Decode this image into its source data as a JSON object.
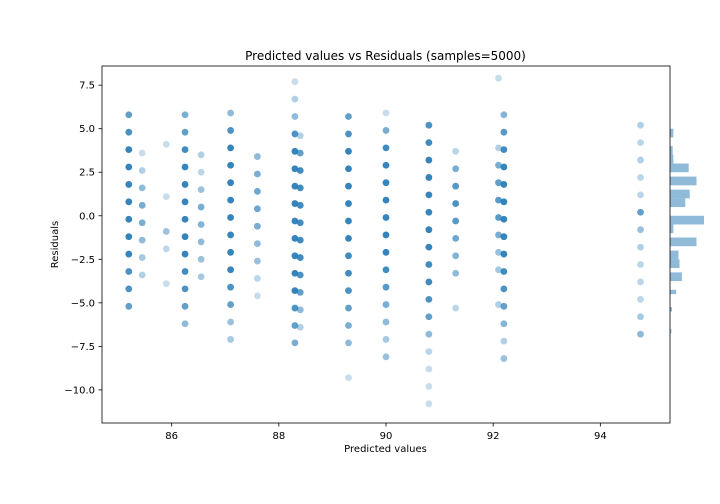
{
  "chart_data": {
    "type": "scatter",
    "title": "Predicted values vs Residuals (samples=5000)",
    "xlabel": "Predicted values",
    "ylabel": "Residuals",
    "xlim": [
      84.7,
      95.3
    ],
    "ylim": [
      -11.9,
      8.6
    ],
    "xticks": [
      86,
      88,
      90,
      92,
      94
    ],
    "yticks": [
      7.5,
      5.0,
      2.5,
      0.0,
      -2.5,
      -5.0,
      -7.5,
      -10.0
    ],
    "ytick_labels": [
      "7.5",
      "5.0",
      "2.5",
      "0.0",
      "−2.5",
      "−5.0",
      "−7.5",
      "−10.0"
    ],
    "color": "#1f77b4",
    "grid": false,
    "columns": [
      {
        "x": 85.2,
        "y": [
          5.8,
          4.8,
          3.8,
          2.8,
          1.8,
          0.8,
          -0.2,
          -1.2,
          -2.2,
          -3.2,
          -4.2,
          -5.2
        ],
        "alpha": [
          0.7,
          0.8,
          0.9,
          0.9,
          0.9,
          0.9,
          0.9,
          0.9,
          0.9,
          0.8,
          0.8,
          0.7
        ]
      },
      {
        "x": 85.45,
        "y": [
          3.6,
          2.6,
          1.6,
          0.6,
          -0.4,
          -1.4,
          -2.4,
          -3.4
        ],
        "alpha": [
          0.25,
          0.35,
          0.5,
          0.6,
          0.6,
          0.5,
          0.4,
          0.35
        ]
      },
      {
        "x": 85.9,
        "y": [
          4.1,
          1.1,
          -0.9,
          -1.9,
          -3.9
        ],
        "alpha": [
          0.25,
          0.25,
          0.45,
          0.3,
          0.25
        ]
      },
      {
        "x": 86.25,
        "y": [
          5.8,
          4.8,
          3.8,
          2.8,
          1.8,
          0.8,
          -0.2,
          -1.2,
          -2.2,
          -3.2,
          -4.2,
          -5.2,
          -6.2
        ],
        "alpha": [
          0.6,
          0.7,
          0.85,
          0.9,
          0.9,
          0.9,
          0.9,
          0.9,
          0.9,
          0.85,
          0.8,
          0.7,
          0.5
        ]
      },
      {
        "x": 86.55,
        "y": [
          3.5,
          2.5,
          1.5,
          0.5,
          -0.5,
          -1.5,
          -2.5,
          -3.5
        ],
        "alpha": [
          0.35,
          0.3,
          0.45,
          0.6,
          0.55,
          0.5,
          0.45,
          0.4
        ]
      },
      {
        "x": 87.1,
        "y": [
          5.9,
          4.9,
          3.9,
          2.9,
          1.9,
          0.9,
          -0.1,
          -1.1,
          -2.1,
          -3.1,
          -4.1,
          -5.1,
          -6.1,
          -7.1
        ],
        "alpha": [
          0.5,
          0.8,
          0.9,
          0.9,
          0.9,
          0.9,
          0.9,
          0.9,
          0.9,
          0.9,
          0.8,
          0.7,
          0.45,
          0.4
        ]
      },
      {
        "x": 87.6,
        "y": [
          3.4,
          2.4,
          1.4,
          0.4,
          -0.6,
          -1.6,
          -2.6,
          -3.6,
          -4.6
        ],
        "alpha": [
          0.5,
          0.6,
          0.65,
          0.65,
          0.6,
          0.5,
          0.45,
          0.3,
          0.25
        ]
      },
      {
        "x": 88.3,
        "y": [
          7.7,
          6.7,
          5.7,
          4.7,
          3.7,
          2.7,
          1.7,
          0.7,
          -0.3,
          -1.3,
          -2.3,
          -3.3,
          -4.3,
          -5.3,
          -6.3,
          -7.3
        ],
        "alpha": [
          0.25,
          0.35,
          0.5,
          0.8,
          0.9,
          0.9,
          0.9,
          0.9,
          0.9,
          0.9,
          0.9,
          0.9,
          0.9,
          0.8,
          0.7,
          0.6
        ]
      },
      {
        "x": 88.4,
        "y": [
          4.6,
          3.6,
          2.6,
          1.6,
          0.6,
          -0.4,
          -1.4,
          -2.4,
          -3.4,
          -4.4,
          -5.4,
          -6.4
        ],
        "alpha": [
          0.35,
          0.7,
          0.85,
          0.85,
          0.85,
          0.85,
          0.85,
          0.85,
          0.8,
          0.7,
          0.5,
          0.35
        ]
      },
      {
        "x": 89.3,
        "y": [
          5.7,
          4.7,
          3.7,
          2.7,
          1.7,
          0.7,
          -0.3,
          -1.3,
          -2.3,
          -3.3,
          -4.3,
          -5.3,
          -6.3,
          -7.3,
          -9.3
        ],
        "alpha": [
          0.7,
          0.8,
          0.9,
          0.9,
          0.9,
          0.9,
          0.9,
          0.9,
          0.85,
          0.85,
          0.8,
          0.7,
          0.6,
          0.5,
          0.25
        ]
      },
      {
        "x": 90.0,
        "y": [
          5.9,
          4.9,
          3.9,
          2.9,
          1.9,
          0.9,
          -0.1,
          -1.1,
          -2.1,
          -3.1,
          -4.1,
          -5.1,
          -6.1,
          -7.1,
          -8.1
        ],
        "alpha": [
          0.25,
          0.6,
          0.85,
          0.9,
          0.9,
          0.9,
          0.9,
          0.9,
          0.9,
          0.85,
          0.75,
          0.6,
          0.5,
          0.4,
          0.45
        ]
      },
      {
        "x": 90.8,
        "y": [
          5.2,
          4.2,
          3.2,
          2.2,
          1.2,
          0.2,
          -0.8,
          -1.8,
          -2.8,
          -3.8,
          -4.8,
          -5.8,
          -6.8,
          -7.8,
          -8.8,
          -9.8,
          -10.8
        ],
        "alpha": [
          0.8,
          0.85,
          0.9,
          0.9,
          0.9,
          0.9,
          0.9,
          0.9,
          0.85,
          0.85,
          0.8,
          0.7,
          0.5,
          0.3,
          0.25,
          0.25,
          0.25
        ]
      },
      {
        "x": 91.3,
        "y": [
          3.7,
          2.7,
          1.7,
          0.7,
          -0.3,
          -1.3,
          -2.3,
          -3.3,
          -5.3
        ],
        "alpha": [
          0.3,
          0.6,
          0.75,
          0.8,
          0.75,
          0.65,
          0.55,
          0.5,
          0.3
        ]
      },
      {
        "x": 92.1,
        "y": [
          7.9,
          3.9,
          2.9,
          1.9,
          0.9,
          -0.1,
          -1.1,
          -2.1,
          -3.1,
          -5.1
        ],
        "alpha": [
          0.25,
          0.35,
          0.6,
          0.7,
          0.75,
          0.75,
          0.6,
          0.45,
          0.4,
          0.35
        ]
      },
      {
        "x": 92.2,
        "y": [
          5.8,
          4.8,
          3.8,
          2.8,
          1.8,
          0.8,
          -0.2,
          -1.2,
          -2.2,
          -3.2,
          -4.2,
          -5.2,
          -6.2,
          -7.2,
          -8.2
        ],
        "alpha": [
          0.55,
          0.75,
          0.85,
          0.9,
          0.9,
          0.9,
          0.9,
          0.9,
          0.9,
          0.85,
          0.8,
          0.7,
          0.55,
          0.35,
          0.45
        ]
      },
      {
        "x": 94.75,
        "y": [
          5.2,
          4.2,
          3.2,
          2.2,
          1.2,
          0.2,
          -0.8,
          -1.8,
          -2.8,
          -3.8,
          -4.8,
          -5.8,
          -6.8
        ],
        "alpha": [
          0.35,
          0.3,
          0.35,
          0.3,
          0.3,
          0.7,
          0.45,
          0.35,
          0.3,
          0.3,
          0.3,
          0.4,
          0.5
        ]
      }
    ],
    "marginal_histogram": {
      "orientation": "horizontal",
      "bins": [
        {
          "y0": 4.5,
          "y1": 5.0,
          "count": 0.1
        },
        {
          "y0": 3.5,
          "y1": 4.0,
          "count": 0.08
        },
        {
          "y0": 3.0,
          "y1": 3.5,
          "count": 0.1
        },
        {
          "y0": 2.5,
          "y1": 3.0,
          "count": 0.55
        },
        {
          "y0": 1.75,
          "y1": 2.25,
          "count": 0.78
        },
        {
          "y0": 1.0,
          "y1": 1.5,
          "count": 0.58
        },
        {
          "y0": 0.5,
          "y1": 1.0,
          "count": 0.45
        },
        {
          "y0": -0.5,
          "y1": 0.0,
          "count": 1.0
        },
        {
          "y0": -1.0,
          "y1": -0.5,
          "count": 0.1
        },
        {
          "y0": -1.75,
          "y1": -1.25,
          "count": 0.78
        },
        {
          "y0": -2.5,
          "y1": -2.0,
          "count": 0.25
        },
        {
          "y0": -3.0,
          "y1": -2.5,
          "count": 0.28
        },
        {
          "y0": -3.75,
          "y1": -3.25,
          "count": 0.35
        },
        {
          "y0": -4.5,
          "y1": -4.25,
          "count": 0.18
        },
        {
          "y0": -5.5,
          "y1": -5.25,
          "count": 0.06
        },
        {
          "y0": -6.75,
          "y1": -6.5,
          "count": 0.04
        }
      ]
    }
  }
}
